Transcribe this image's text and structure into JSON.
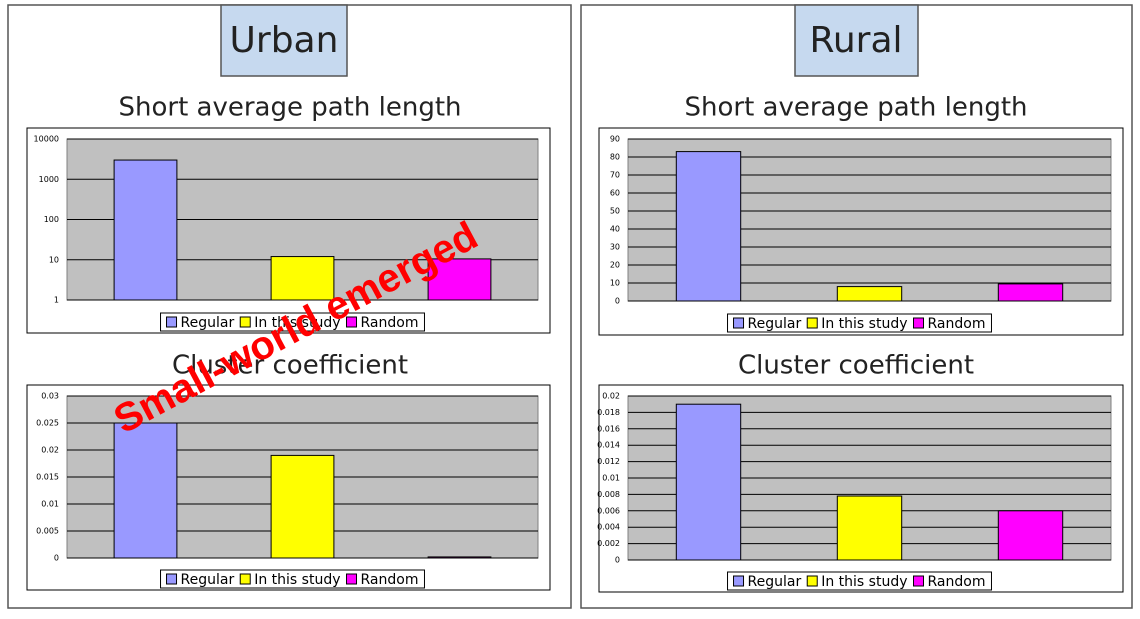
{
  "panels": [
    {
      "heading": "Urban"
    },
    {
      "heading": "Rural"
    }
  ],
  "annotation": "Small-world emerged",
  "chart_data": [
    {
      "type": "bar",
      "title": "Short average path length",
      "log": true,
      "categories": [
        "Regular",
        "In this study",
        "Random"
      ],
      "values": [
        3000,
        12,
        10.5
      ],
      "colors": [
        "#9999ff",
        "#ffff00",
        "#ff00ff"
      ],
      "ylim": [
        1,
        10000
      ],
      "yticks": [
        1,
        10,
        100,
        1000,
        10000
      ],
      "grid": true,
      "legend": "bottom"
    },
    {
      "type": "bar",
      "title": "Cluster coefficient",
      "log": false,
      "categories": [
        "Regular",
        "In this study",
        "Random"
      ],
      "values": [
        0.025,
        0.019,
        0.0002
      ],
      "colors": [
        "#9999ff",
        "#ffff00",
        "#ff00ff"
      ],
      "ylim": [
        0,
        0.03
      ],
      "yticks": [
        0,
        0.005,
        0.01,
        0.015,
        0.02,
        0.025,
        0.03
      ],
      "grid": true,
      "legend": "bottom"
    },
    {
      "type": "bar",
      "title": "Short average path length",
      "log": false,
      "categories": [
        "Regular",
        "In this study",
        "Random"
      ],
      "values": [
        83,
        8,
        9.5
      ],
      "colors": [
        "#9999ff",
        "#ffff00",
        "#ff00ff"
      ],
      "ylim": [
        0,
        90
      ],
      "yticks": [
        0,
        10,
        20,
        30,
        40,
        50,
        60,
        70,
        80,
        90
      ],
      "grid": true,
      "legend": "bottom"
    },
    {
      "type": "bar",
      "title": "Cluster coefficient",
      "log": false,
      "categories": [
        "Regular",
        "In this study",
        "Random"
      ],
      "values": [
        0.019,
        0.0078,
        0.006
      ],
      "colors": [
        "#9999ff",
        "#ffff00",
        "#ff00ff"
      ],
      "ylim": [
        0,
        0.02
      ],
      "yticks": [
        0,
        0.002,
        0.004,
        0.006,
        0.008,
        0.01,
        0.012,
        0.014,
        0.016,
        0.018,
        0.02
      ],
      "grid": true,
      "legend": "bottom"
    }
  ]
}
